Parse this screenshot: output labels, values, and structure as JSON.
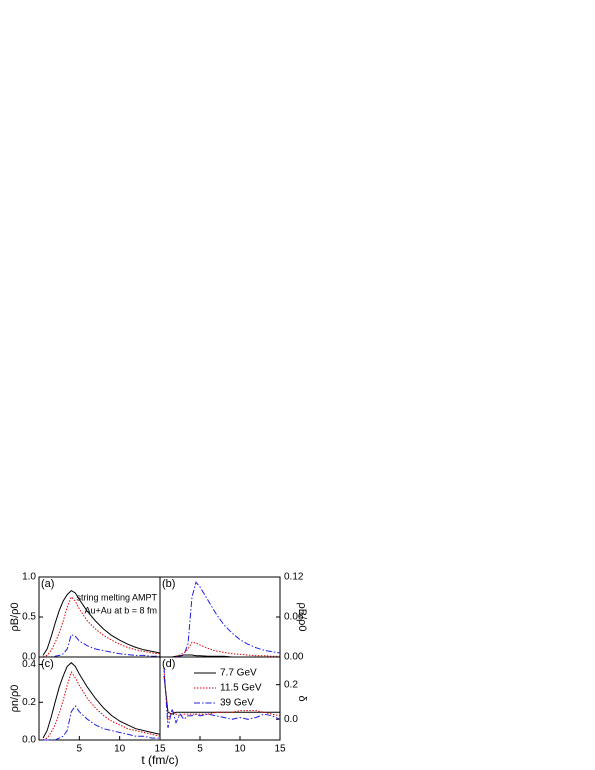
{
  "chart_data": [
    {
      "type": "line",
      "panel_label": "(a)",
      "ylabel": "ρB/ρ0",
      "y_axis_side": "left",
      "annotations": [
        "string melting AMPT",
        "Au+Au at b = 8 fm"
      ],
      "xlim": [
        0,
        15
      ],
      "ylim": [
        0,
        1
      ],
      "yticks": [
        {
          "value": 0,
          "label": "0.0"
        },
        {
          "value": 0.5,
          "label": "0.5"
        },
        {
          "value": 1,
          "label": "1.0"
        }
      ],
      "x": [
        0.5,
        1,
        1.5,
        2,
        2.5,
        3,
        3.5,
        4,
        4.5,
        5,
        6,
        7,
        8,
        9,
        10,
        11,
        12,
        13,
        14,
        15
      ],
      "series": [
        {
          "color": "#000000",
          "dash": "solid",
          "values": [
            0.02,
            0.1,
            0.25,
            0.42,
            0.58,
            0.7,
            0.78,
            0.83,
            0.8,
            0.72,
            0.57,
            0.45,
            0.35,
            0.27,
            0.21,
            0.16,
            0.12,
            0.09,
            0.07,
            0.05
          ]
        },
        {
          "color": "#e00000",
          "dash": "dotted",
          "values": [
            0,
            0.02,
            0.08,
            0.18,
            0.3,
            0.45,
            0.62,
            0.75,
            0.7,
            0.6,
            0.45,
            0.35,
            0.27,
            0.21,
            0.16,
            0.12,
            0.09,
            0.07,
            0.05,
            0.04
          ]
        },
        {
          "color": "#2020e0",
          "dash": "dashdot",
          "values": [
            0,
            0,
            0,
            0.01,
            0.02,
            0.04,
            0.1,
            0.28,
            0.26,
            0.2,
            0.14,
            0.1,
            0.08,
            0.06,
            0.04,
            0.03,
            0.02,
            0.02,
            0.01,
            0.01
          ]
        }
      ]
    },
    {
      "type": "line",
      "panel_label": "(b)",
      "ylabel": "ρB/ρ0",
      "y_axis_side": "right",
      "xlim": [
        0,
        15
      ],
      "ylim": [
        0,
        0.12
      ],
      "yticks": [
        {
          "value": 0,
          "label": "0.00"
        },
        {
          "value": 0.06,
          "label": "0.06"
        },
        {
          "value": 0.12,
          "label": "0.12"
        }
      ],
      "x": [
        0.5,
        1,
        1.5,
        2,
        2.5,
        3,
        3.5,
        4,
        4.5,
        5,
        6,
        7,
        8,
        9,
        10,
        11,
        12,
        13,
        14,
        15
      ],
      "series": [
        {
          "color": "#000000",
          "dash": "solid",
          "values": [
            0,
            0,
            0,
            0.001,
            0.002,
            0.003,
            0.003,
            0.003,
            0.002,
            0.002,
            0.001,
            0.001,
            0.001,
            0,
            0,
            0,
            0,
            0,
            0,
            0
          ]
        },
        {
          "color": "#e00000",
          "dash": "dotted",
          "values": [
            0,
            0,
            0,
            0.001,
            0.003,
            0.006,
            0.012,
            0.022,
            0.021,
            0.018,
            0.013,
            0.009,
            0.007,
            0.005,
            0.004,
            0.003,
            0.002,
            0.002,
            0.001,
            0.001
          ]
        },
        {
          "color": "#2020e0",
          "dash": "dashdot",
          "values": [
            0,
            0,
            0,
            0,
            0.001,
            0.003,
            0.02,
            0.09,
            0.112,
            0.105,
            0.085,
            0.065,
            0.048,
            0.036,
            0.026,
            0.019,
            0.014,
            0.01,
            0.008,
            0.006
          ]
        }
      ]
    },
    {
      "type": "line",
      "panel_label": "(c)",
      "ylabel": "ρn/ρ0",
      "y_axis_side": "left",
      "xlabel": "t (fm/c)",
      "xlim": [
        0,
        15
      ],
      "ylim": [
        0,
        0.44
      ],
      "xticks": [
        5,
        10,
        15
      ],
      "yticks": [
        {
          "value": 0,
          "label": "0.0"
        },
        {
          "value": 0.2,
          "label": "0.2"
        },
        {
          "value": 0.4,
          "label": "0.4"
        }
      ],
      "x": [
        0.5,
        1,
        1.5,
        2,
        2.5,
        3,
        3.5,
        4,
        4.5,
        5,
        6,
        7,
        8,
        9,
        10,
        11,
        12,
        13,
        14,
        15
      ],
      "series": [
        {
          "color": "#000000",
          "dash": "solid",
          "values": [
            0.01,
            0.05,
            0.12,
            0.2,
            0.28,
            0.34,
            0.39,
            0.41,
            0.39,
            0.35,
            0.28,
            0.22,
            0.17,
            0.13,
            0.1,
            0.08,
            0.06,
            0.05,
            0.04,
            0.03
          ]
        },
        {
          "color": "#e00000",
          "dash": "dotted",
          "values": [
            0,
            0.01,
            0.04,
            0.08,
            0.14,
            0.21,
            0.29,
            0.36,
            0.33,
            0.29,
            0.22,
            0.17,
            0.13,
            0.1,
            0.08,
            0.06,
            0.05,
            0.04,
            0.03,
            0.02
          ]
        },
        {
          "color": "#2020e0",
          "dash": "dashdot",
          "values": [
            0,
            0,
            0,
            0,
            0.01,
            0.02,
            0.05,
            0.15,
            0.18,
            0.15,
            0.11,
            0.08,
            0.06,
            0.05,
            0.04,
            0.03,
            0.02,
            0.02,
            0.01,
            0.01
          ]
        }
      ]
    },
    {
      "type": "line",
      "panel_label": "(d)",
      "ylabel": "δ",
      "y_axis_side": "right",
      "legend": true,
      "xlim": [
        0,
        15
      ],
      "ylim": [
        -0.12,
        0.36
      ],
      "xticks": [
        5,
        10,
        15
      ],
      "yticks": [
        {
          "value": 0,
          "label": "0.0"
        },
        {
          "value": 0.2,
          "label": "0.2"
        }
      ],
      "x": [
        0.5,
        1,
        1.5,
        2,
        2.5,
        3,
        3.5,
        4,
        4.5,
        5,
        6,
        7,
        8,
        9,
        10,
        11,
        12,
        13,
        14,
        15
      ],
      "series": [
        {
          "name": "7.7 GeV",
          "color": "#000000",
          "dash": "solid",
          "values": [
            0.25,
            0.04,
            0.03,
            0.04,
            0.04,
            0.04,
            0.04,
            0.04,
            0.04,
            0.04,
            0.04,
            0.04,
            0.04,
            0.04,
            0.04,
            0.04,
            0.04,
            0.04,
            0.04,
            0.04
          ]
        },
        {
          "name": "11.5 GeV",
          "color": "#e00000",
          "dash": "dotted",
          "values": [
            0.28,
            0,
            0.05,
            0.03,
            0.02,
            0.03,
            0.03,
            0.03,
            0.03,
            0.03,
            0.03,
            0.04,
            0.04,
            0.04,
            0.05,
            0.05,
            0.05,
            0.04,
            0.03,
            0.02
          ]
        },
        {
          "name": "39 GeV",
          "color": "#2020e0",
          "dash": "dashdot",
          "values": [
            0.3,
            -0.05,
            0.06,
            -0.02,
            0.03,
            0,
            0.02,
            0.02,
            0.03,
            0.02,
            0.03,
            0.02,
            0.01,
            0,
            0.01,
            0,
            0.01,
            0.03,
            0.02,
            0
          ]
        }
      ]
    }
  ]
}
